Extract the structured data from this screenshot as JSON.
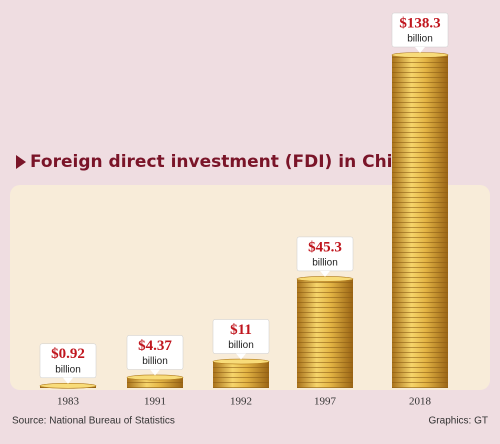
{
  "chart_data": {
    "type": "bar",
    "title": "Foreign direct investment (FDI) in China",
    "categories": [
      "1983",
      "1991",
      "1992",
      "1997",
      "2018"
    ],
    "values": [
      0.92,
      4.37,
      11,
      45.3,
      138.3
    ],
    "value_labels": [
      "$0.92",
      "$4.37",
      "$11",
      "$45.3",
      "$138.3"
    ],
    "unit_label": "billion",
    "color": "#d9a83a",
    "source": "Source: National Bureau of Statistics",
    "credit": "Graphics: GT"
  }
}
